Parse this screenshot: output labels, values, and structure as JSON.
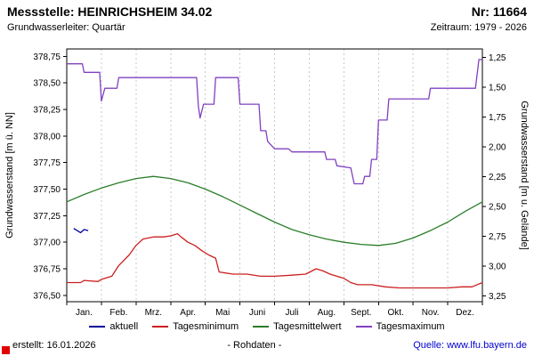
{
  "header": {
    "title": "Messstelle: HEINRICHSHEIM 34.02",
    "number": "Nr: 11664",
    "subtitle_left": "Grundwasserleiter: Quartär",
    "subtitle_right": "Zeitraum: 1979 - 2026"
  },
  "footer": {
    "created": "erstellt: 16.01.2026",
    "center": "- Rohdaten -",
    "source": "Quelle: www.lfu.bayern.de"
  },
  "chart_data": {
    "type": "line",
    "title": "",
    "ylabel_left": "Grundwasserstand [m ü. NN]",
    "ylabel_right": "Grundwasserstand [m u. Gelände]",
    "grid": "vertical-dashed",
    "legend_position": "bottom",
    "x_axis": {
      "min": 0,
      "max": 12,
      "month_labels": [
        "Jan.",
        "Feb.",
        "Mrz.",
        "Apr.",
        "Mai",
        "Juni",
        "Juli",
        "Aug.",
        "Sept.",
        "Okt.",
        "Nov.",
        "Dez."
      ]
    },
    "left_axis": {
      "min": 376.44,
      "max": 378.82,
      "ticks": [
        378.75,
        378.5,
        378.25,
        378.0,
        377.75,
        377.5,
        377.25,
        377.0,
        376.75,
        376.5
      ]
    },
    "right_axis": {
      "min": 1.18,
      "max": 3.3,
      "ticks": [
        1.25,
        1.5,
        1.75,
        2.0,
        2.25,
        2.5,
        2.75,
        3.0,
        3.25
      ]
    },
    "series": [
      {
        "name": "aktuell",
        "color": "#000099",
        "points": [
          [
            0.2,
            377.13
          ],
          [
            0.3,
            377.11
          ],
          [
            0.4,
            377.09
          ],
          [
            0.5,
            377.12
          ],
          [
            0.62,
            377.11
          ]
        ]
      },
      {
        "name": "Tagesminimum",
        "color": "#cc2020",
        "points": [
          [
            0,
            376.62
          ],
          [
            0.4,
            376.62
          ],
          [
            0.5,
            376.64
          ],
          [
            0.9,
            376.63
          ],
          [
            1.0,
            376.65
          ],
          [
            1.3,
            376.68
          ],
          [
            1.5,
            376.78
          ],
          [
            1.8,
            376.88
          ],
          [
            2.0,
            376.97
          ],
          [
            2.2,
            377.03
          ],
          [
            2.5,
            377.05
          ],
          [
            2.8,
            377.05
          ],
          [
            3.0,
            377.06
          ],
          [
            3.2,
            377.08
          ],
          [
            3.3,
            377.05
          ],
          [
            3.5,
            377.0
          ],
          [
            3.7,
            376.97
          ],
          [
            3.9,
            376.92
          ],
          [
            4.1,
            376.88
          ],
          [
            4.3,
            376.85
          ],
          [
            4.4,
            376.72
          ],
          [
            4.8,
            376.7
          ],
          [
            5.2,
            376.7
          ],
          [
            5.6,
            376.68
          ],
          [
            6.0,
            376.68
          ],
          [
            6.5,
            376.69
          ],
          [
            6.9,
            376.7
          ],
          [
            7.2,
            376.75
          ],
          [
            7.4,
            376.73
          ],
          [
            7.6,
            376.7
          ],
          [
            8.0,
            376.66
          ],
          [
            8.2,
            376.62
          ],
          [
            8.4,
            376.6
          ],
          [
            8.8,
            376.6
          ],
          [
            9.2,
            376.58
          ],
          [
            9.6,
            376.57
          ],
          [
            10.0,
            376.57
          ],
          [
            10.5,
            376.57
          ],
          [
            11.0,
            376.57
          ],
          [
            11.4,
            376.58
          ],
          [
            11.7,
            376.58
          ],
          [
            12,
            376.62
          ]
        ]
      },
      {
        "name": "Tagesmittelwert",
        "color": "#2a7e2a",
        "points": [
          [
            0,
            377.38
          ],
          [
            0.5,
            377.45
          ],
          [
            1,
            377.51
          ],
          [
            1.5,
            377.56
          ],
          [
            2,
            377.6
          ],
          [
            2.5,
            377.62
          ],
          [
            3,
            377.6
          ],
          [
            3.5,
            377.56
          ],
          [
            4,
            377.5
          ],
          [
            4.5,
            377.43
          ],
          [
            5,
            377.35
          ],
          [
            5.5,
            377.27
          ],
          [
            6,
            377.19
          ],
          [
            6.5,
            377.12
          ],
          [
            7,
            377.07
          ],
          [
            7.5,
            377.03
          ],
          [
            8,
            377.0
          ],
          [
            8.5,
            376.98
          ],
          [
            9,
            376.97
          ],
          [
            9.5,
            376.99
          ],
          [
            10,
            377.04
          ],
          [
            10.5,
            377.11
          ],
          [
            11,
            377.19
          ],
          [
            11.5,
            377.29
          ],
          [
            12,
            377.38
          ]
        ]
      },
      {
        "name": "Tagesmaximum",
        "color": "#8040c0",
        "points": [
          [
            0,
            378.68
          ],
          [
            0.45,
            378.68
          ],
          [
            0.5,
            378.6
          ],
          [
            0.95,
            378.6
          ],
          [
            1.0,
            378.33
          ],
          [
            1.1,
            378.45
          ],
          [
            1.45,
            378.45
          ],
          [
            1.5,
            378.55
          ],
          [
            3.75,
            378.55
          ],
          [
            3.8,
            378.28
          ],
          [
            3.85,
            378.17
          ],
          [
            3.95,
            378.3
          ],
          [
            4.25,
            378.3
          ],
          [
            4.3,
            378.55
          ],
          [
            4.95,
            378.55
          ],
          [
            5.0,
            378.3
          ],
          [
            5.55,
            378.3
          ],
          [
            5.6,
            378.05
          ],
          [
            5.75,
            378.05
          ],
          [
            5.8,
            377.95
          ],
          [
            6.0,
            377.88
          ],
          [
            6.4,
            377.88
          ],
          [
            6.5,
            377.85
          ],
          [
            7.45,
            377.85
          ],
          [
            7.5,
            377.78
          ],
          [
            7.75,
            377.78
          ],
          [
            7.8,
            377.72
          ],
          [
            8.2,
            377.7
          ],
          [
            8.3,
            377.55
          ],
          [
            8.55,
            377.55
          ],
          [
            8.6,
            377.62
          ],
          [
            8.75,
            377.62
          ],
          [
            8.8,
            377.78
          ],
          [
            8.95,
            377.78
          ],
          [
            9.0,
            378.15
          ],
          [
            9.25,
            378.15
          ],
          [
            9.3,
            378.35
          ],
          [
            10.45,
            378.35
          ],
          [
            10.5,
            378.45
          ],
          [
            11.8,
            378.45
          ],
          [
            11.9,
            378.72
          ],
          [
            12,
            378.72
          ]
        ]
      }
    ]
  }
}
